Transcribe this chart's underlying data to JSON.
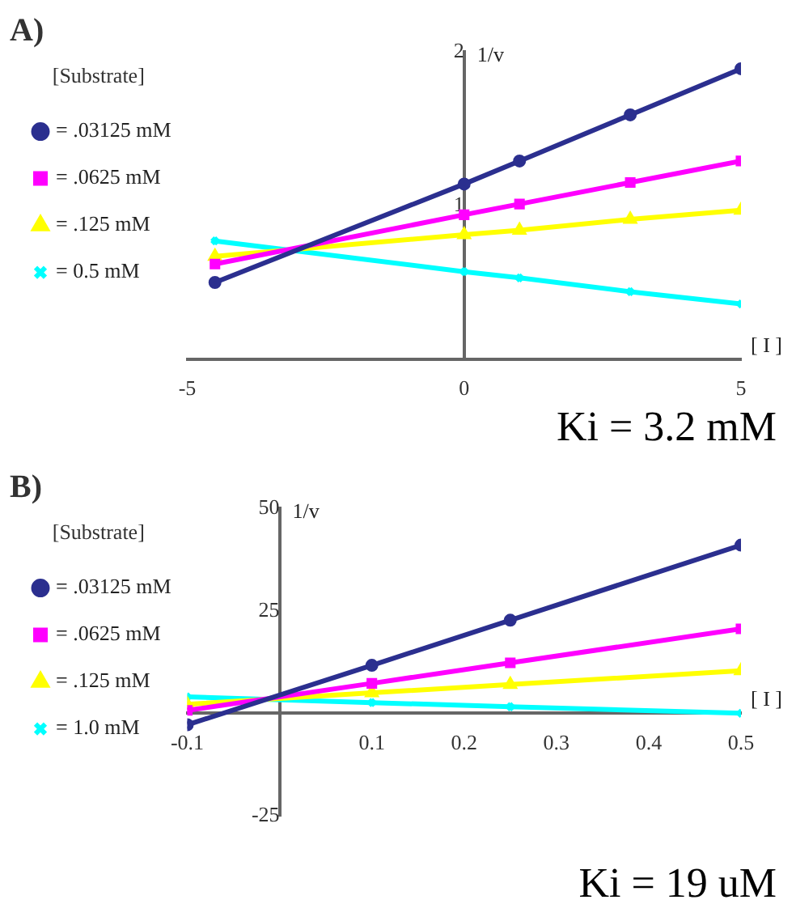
{
  "chart_data": [
    {
      "type": "line",
      "title": "A)",
      "xlabel": "[ I ]",
      "ylabel": "1/v",
      "legend_title": "[Substrate]",
      "annotations": [
        "Ki = 3.2 mM"
      ],
      "x": [
        -4.5,
        0,
        1,
        3,
        5
      ],
      "xlim": [
        -5,
        5
      ],
      "xticks": [
        -5,
        0,
        5
      ],
      "ylim": [
        0,
        2
      ],
      "yticks": [
        1,
        2
      ],
      "grid": false,
      "legend": "left",
      "series": [
        {
          "name": "= .03125 mM",
          "color": "#2b2f8f",
          "marker": "circle",
          "values": [
            0.5,
            1.14,
            1.29,
            1.59,
            1.89
          ]
        },
        {
          "name": "= .0625 mM",
          "color": "#ff00ff",
          "marker": "square",
          "values": [
            0.62,
            0.94,
            1.01,
            1.15,
            1.29
          ]
        },
        {
          "name": "= .125 mM",
          "color": "#ffff00",
          "marker": "triangle",
          "values": [
            0.67,
            0.81,
            0.84,
            0.91,
            0.97
          ]
        },
        {
          "name": "= 0.5 mM",
          "color": "#00ffff",
          "marker": "cross",
          "values": [
            0.77,
            0.57,
            0.53,
            0.44,
            0.36
          ]
        }
      ]
    },
    {
      "type": "line",
      "title": "B)",
      "xlabel": "[ I ]",
      "ylabel": "1/v",
      "legend_title": "[Substrate]",
      "annotations": [
        "Ki = 19 uM"
      ],
      "x": [
        -0.1,
        0.1,
        0.25,
        0.5
      ],
      "xlim": [
        -0.1,
        0.5
      ],
      "xticks": [
        -0.1,
        0.1,
        0.2,
        0.3,
        0.4,
        0.5
      ],
      "ylim": [
        -25,
        50
      ],
      "yticks": [
        -25,
        25,
        50
      ],
      "grid": false,
      "legend": "left",
      "series": [
        {
          "name": "= .03125 mM",
          "color": "#2b2f8f",
          "marker": "circle",
          "values": [
            -2.8,
            11.7,
            22.7,
            41
          ]
        },
        {
          "name": "= .0625 mM",
          "color": "#ff00ff",
          "marker": "square",
          "values": [
            0.7,
            7.3,
            12.3,
            20.6
          ]
        },
        {
          "name": "= .125 mM",
          "color": "#ffff00",
          "marker": "triangle",
          "values": [
            2.2,
            5.0,
            7.0,
            10.4
          ]
        },
        {
          "name": "= 1.0 mM",
          "color": "#00ffff",
          "marker": "cross",
          "values": [
            4.0,
            2.6,
            1.6,
            0
          ]
        }
      ]
    }
  ]
}
